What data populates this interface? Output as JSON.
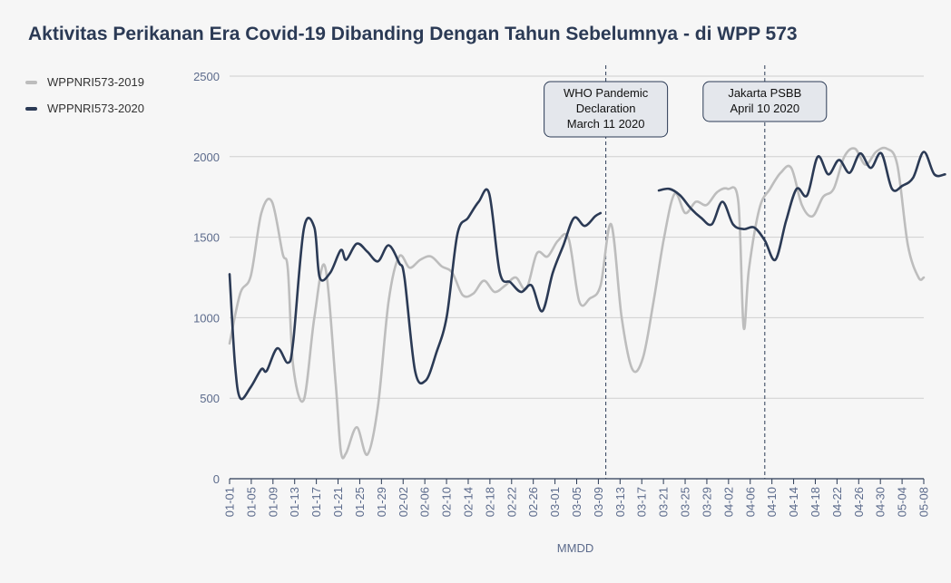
{
  "chart_data": {
    "type": "line",
    "title": "Aktivitas Perikanan Era Covid-19 Dibanding Dengan Tahun Sebelumnya - di WPP 573",
    "xlabel": "MMDD",
    "ylabel": "",
    "ylim": [
      0,
      2500
    ],
    "yticks": [
      0,
      500,
      1000,
      1500,
      2000,
      2500
    ],
    "grid": true,
    "legend_position": "left",
    "x_categories": [
      "01-01",
      "01-05",
      "01-09",
      "01-13",
      "01-17",
      "01-21",
      "01-25",
      "01-29",
      "02-02",
      "02-06",
      "02-10",
      "02-14",
      "02-18",
      "02-22",
      "02-26",
      "03-01",
      "03-05",
      "03-09",
      "03-13",
      "03-17",
      "03-21",
      "03-25",
      "03-29",
      "04-02",
      "04-06",
      "04-10",
      "04-14",
      "04-18",
      "04-22",
      "04-26",
      "04-30",
      "05-04",
      "05-08"
    ],
    "series": [
      {
        "name": "WPPNRI573-2019",
        "color": "#bdbdbd",
        "values": [
          [
            0,
            840
          ],
          [
            2,
            1150
          ],
          [
            4,
            1260
          ],
          [
            6,
            1650
          ],
          [
            8,
            1720
          ],
          [
            10,
            1400
          ],
          [
            11,
            1300
          ],
          [
            12,
            700
          ],
          [
            14,
            490
          ],
          [
            16,
            1000
          ],
          [
            18,
            1320
          ],
          [
            20,
            600
          ],
          [
            21,
            170
          ],
          [
            22,
            160
          ],
          [
            24,
            320
          ],
          [
            26,
            150
          ],
          [
            28,
            450
          ],
          [
            30,
            1100
          ],
          [
            32,
            1380
          ],
          [
            34,
            1310
          ],
          [
            36,
            1360
          ],
          [
            38,
            1380
          ],
          [
            40,
            1320
          ],
          [
            42,
            1280
          ],
          [
            44,
            1140
          ],
          [
            46,
            1150
          ],
          [
            48,
            1230
          ],
          [
            50,
            1160
          ],
          [
            52,
            1200
          ],
          [
            54,
            1250
          ],
          [
            56,
            1180
          ],
          [
            58,
            1400
          ],
          [
            60,
            1380
          ],
          [
            62,
            1480
          ],
          [
            64,
            1490
          ],
          [
            66,
            1100
          ],
          [
            68,
            1120
          ],
          [
            70,
            1200
          ],
          [
            72,
            1580
          ],
          [
            74,
            1000
          ],
          [
            76,
            680
          ],
          [
            78,
            750
          ],
          [
            80,
            1100
          ],
          [
            82,
            1500
          ],
          [
            84,
            1770
          ],
          [
            86,
            1650
          ],
          [
            88,
            1720
          ],
          [
            90,
            1700
          ],
          [
            92,
            1780
          ],
          [
            94,
            1800
          ],
          [
            96,
            1720
          ],
          [
            97,
            940
          ],
          [
            98,
            1300
          ],
          [
            100,
            1680
          ],
          [
            102,
            1800
          ],
          [
            104,
            1900
          ],
          [
            106,
            1930
          ],
          [
            108,
            1700
          ],
          [
            110,
            1630
          ],
          [
            112,
            1750
          ],
          [
            114,
            1800
          ],
          [
            116,
            2000
          ],
          [
            118,
            2050
          ],
          [
            120,
            1950
          ],
          [
            122,
            2030
          ],
          [
            124,
            2050
          ],
          [
            126,
            1950
          ],
          [
            128,
            1450
          ],
          [
            130,
            1250
          ],
          [
            131,
            1250
          ]
        ]
      },
      {
        "name": "WPPNRI573-2020",
        "color": "#2b3a55",
        "values": [
          [
            0,
            1270
          ],
          [
            1,
            720
          ],
          [
            2,
            500
          ],
          [
            4,
            570
          ],
          [
            6,
            680
          ],
          [
            7,
            670
          ],
          [
            9,
            810
          ],
          [
            11,
            720
          ],
          [
            12,
            850
          ],
          [
            14,
            1550
          ],
          [
            16,
            1560
          ],
          [
            17,
            1250
          ],
          [
            19,
            1280
          ],
          [
            21,
            1420
          ],
          [
            22,
            1360
          ],
          [
            24,
            1460
          ],
          [
            26,
            1410
          ],
          [
            28,
            1350
          ],
          [
            30,
            1450
          ],
          [
            32,
            1340
          ],
          [
            33,
            1250
          ],
          [
            35,
            670
          ],
          [
            37,
            610
          ],
          [
            39,
            780
          ],
          [
            41,
            1010
          ],
          [
            43,
            1520
          ],
          [
            45,
            1620
          ],
          [
            47,
            1720
          ],
          [
            49,
            1770
          ],
          [
            51,
            1280
          ],
          [
            53,
            1220
          ],
          [
            55,
            1160
          ],
          [
            57,
            1200
          ],
          [
            59,
            1040
          ],
          [
            61,
            1280
          ],
          [
            63,
            1450
          ],
          [
            65,
            1620
          ],
          [
            67,
            1570
          ],
          [
            69,
            1630
          ],
          [
            70,
            1650
          ],
          [
            81,
            1790
          ],
          [
            83,
            1800
          ],
          [
            85,
            1760
          ],
          [
            87,
            1680
          ],
          [
            89,
            1620
          ],
          [
            91,
            1580
          ],
          [
            93,
            1720
          ],
          [
            95,
            1580
          ],
          [
            97,
            1550
          ],
          [
            99,
            1560
          ],
          [
            101,
            1480
          ],
          [
            103,
            1360
          ],
          [
            105,
            1600
          ],
          [
            107,
            1800
          ],
          [
            109,
            1760
          ],
          [
            111,
            2000
          ],
          [
            113,
            1890
          ],
          [
            115,
            1980
          ],
          [
            117,
            1900
          ],
          [
            119,
            2020
          ],
          [
            121,
            1930
          ],
          [
            123,
            2020
          ],
          [
            125,
            1800
          ],
          [
            127,
            1820
          ],
          [
            129,
            1870
          ],
          [
            131,
            2030
          ],
          [
            133,
            1890
          ],
          [
            135,
            1890
          ]
        ]
      }
    ],
    "x_domain": [
      0,
      131
    ],
    "annotations": [
      {
        "x": 71,
        "lines": [
          "WHO Pandemic",
          "Declaration",
          "March 11 2020"
        ]
      },
      {
        "x": 101,
        "lines": [
          "Jakarta PSBB",
          "April 10 2020"
        ]
      }
    ]
  }
}
